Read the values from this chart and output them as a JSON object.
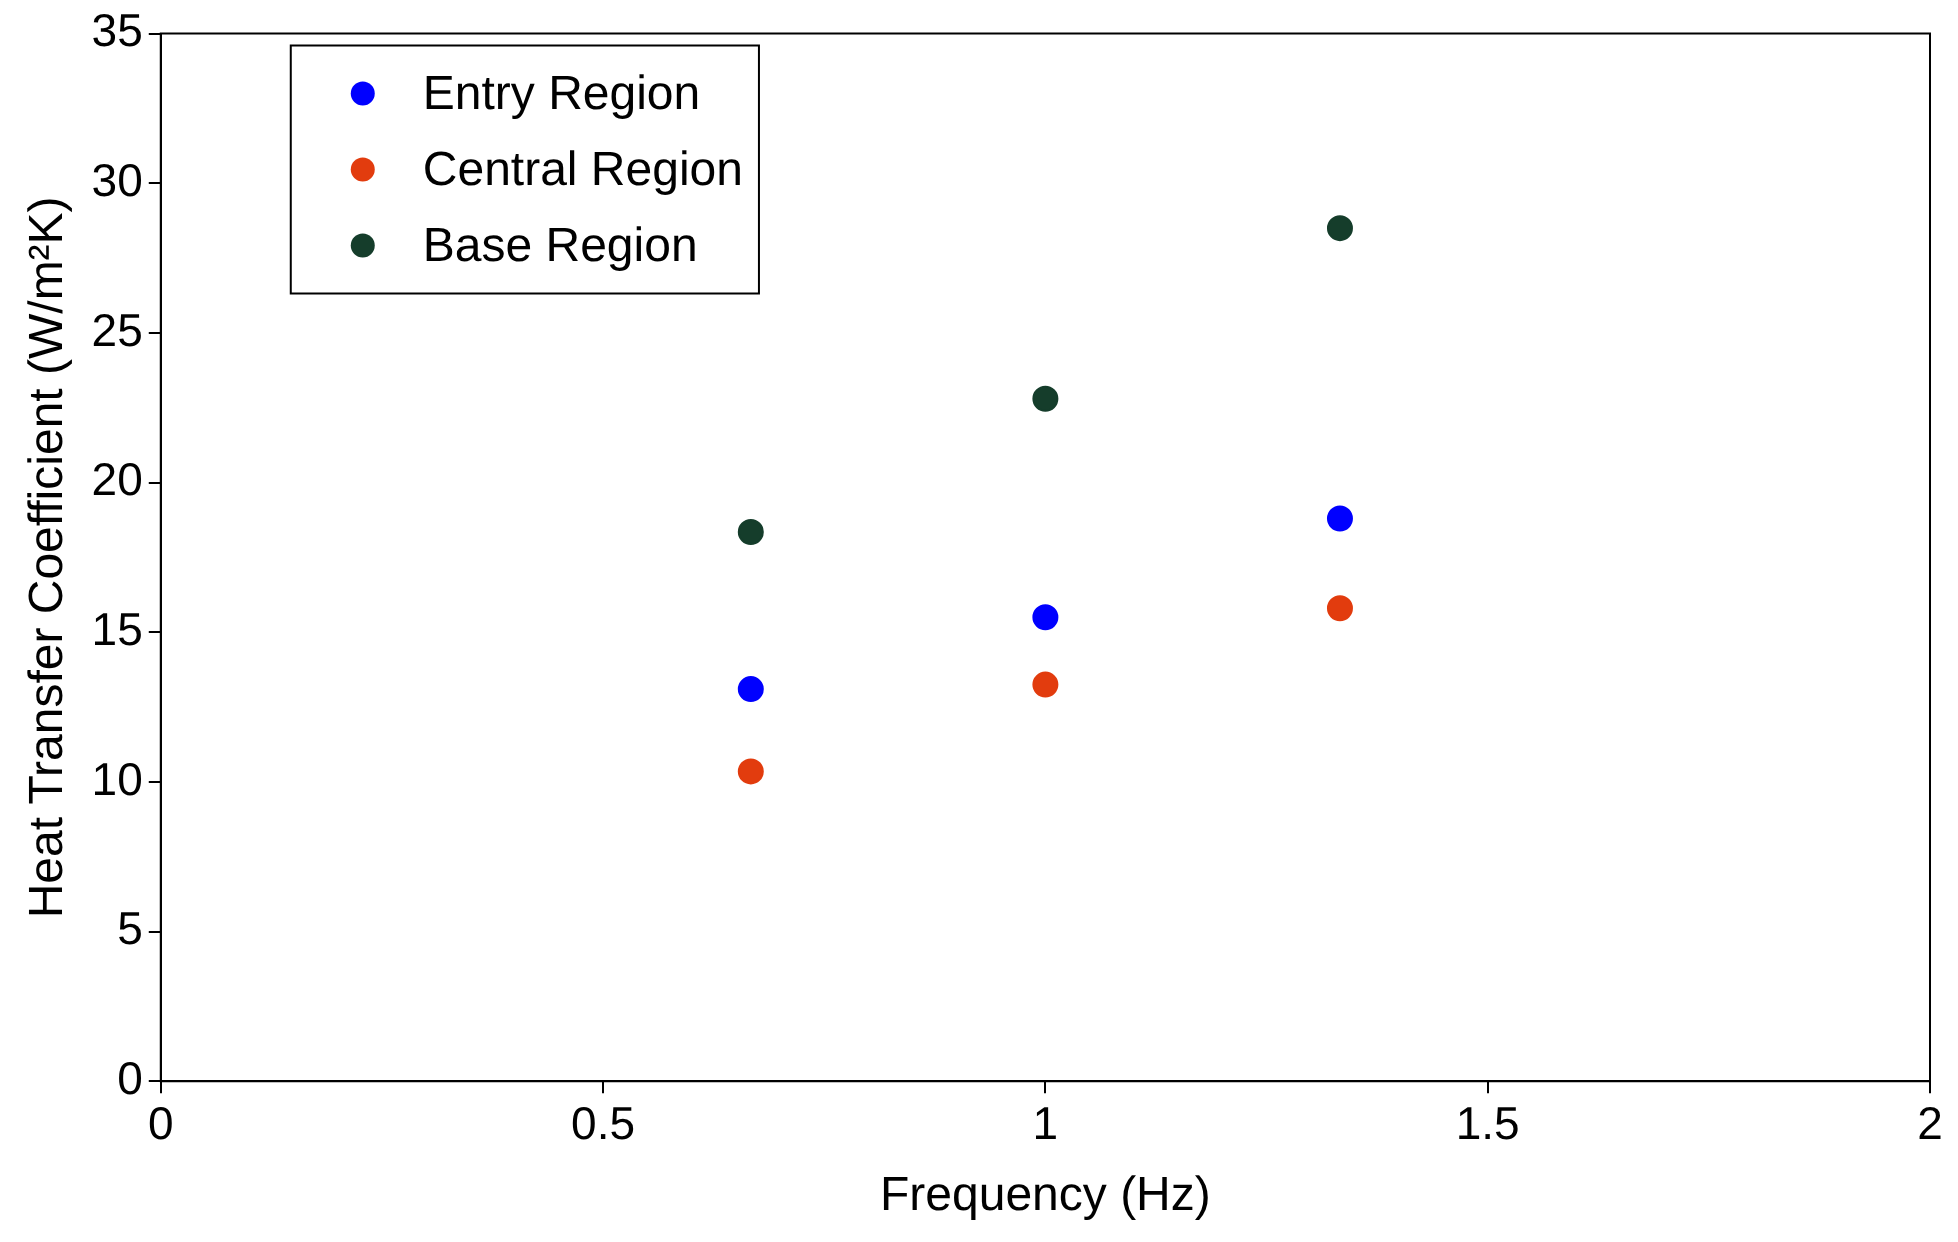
{
  "chart_data": {
    "type": "scatter",
    "xlabel": "Frequency (Hz)",
    "ylabel": "Heat Transfer Coefficient (W/m²K)",
    "x": [
      0.667,
      1,
      1.333
    ],
    "series": [
      {
        "name": "Entry Region",
        "color": "#0000ff",
        "values": [
          13.1,
          15.5,
          18.8
        ]
      },
      {
        "name": "Central Region",
        "color": "#e23c0e",
        "values": [
          10.35,
          13.25,
          15.8
        ]
      },
      {
        "name": "Base Region",
        "color": "#153d2b",
        "values": [
          18.35,
          22.8,
          28.5
        ]
      }
    ],
    "xlim": [
      0,
      2
    ],
    "xticks": [
      0,
      0.5,
      1,
      1.5,
      2
    ],
    "ylim": [
      0,
      35
    ],
    "yticks": [
      0,
      5,
      10,
      15,
      20,
      25,
      30,
      35
    ],
    "grid": false,
    "legend": "top left",
    "marker": "circle"
  }
}
